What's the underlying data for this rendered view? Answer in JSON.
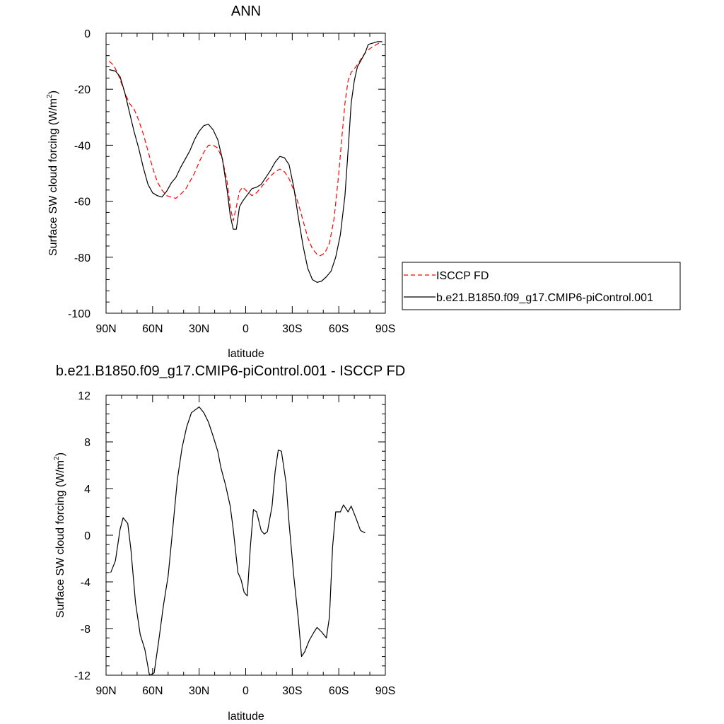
{
  "chart_data": [
    {
      "type": "line",
      "title": "ANN",
      "xlabel": "latitude",
      "ylabel": "Surface SW cloud forcing (W/m",
      "ylabel_sup": "2",
      "ylabel_end": ")",
      "xlim": [
        90,
        -90
      ],
      "ylim": [
        -100,
        0
      ],
      "x_ticks": [
        90,
        60,
        30,
        0,
        -30,
        -60,
        -90
      ],
      "x_tick_labels": [
        "90N",
        "60N",
        "30N",
        "0",
        "30S",
        "60S",
        "90S"
      ],
      "y_ticks": [
        0,
        -20,
        -40,
        -60,
        -80,
        -100
      ],
      "y_tick_labels": [
        "0",
        "-20",
        "-40",
        "-60",
        "-80",
        "-100"
      ],
      "legend_position": "right",
      "series": [
        {
          "name": "ISCCP FD",
          "color": "#ff0000",
          "dash": "dashed",
          "points": [
            [
              88,
              -10
            ],
            [
              85,
              -11.5
            ],
            [
              82,
              -15
            ],
            [
              78,
              -21
            ],
            [
              75,
              -25
            ],
            [
              72,
              -27
            ],
            [
              69,
              -31
            ],
            [
              66,
              -36
            ],
            [
              63,
              -42
            ],
            [
              60,
              -48
            ],
            [
              57,
              -53
            ],
            [
              54,
              -56
            ],
            [
              51,
              -58
            ],
            [
              48,
              -58.5
            ],
            [
              45,
              -59
            ],
            [
              42,
              -57.5
            ],
            [
              39,
              -56
            ],
            [
              36,
              -53
            ],
            [
              33,
              -50
            ],
            [
              30,
              -46
            ],
            [
              27,
              -42.5
            ],
            [
              24,
              -40
            ],
            [
              21,
              -40
            ],
            [
              18,
              -41
            ],
            [
              15,
              -45
            ],
            [
              12,
              -53
            ],
            [
              10,
              -62
            ],
            [
              8,
              -67
            ],
            [
              6,
              -62
            ],
            [
              4,
              -56.5
            ],
            [
              2,
              -55
            ],
            [
              0,
              -56
            ],
            [
              -2,
              -57
            ],
            [
              -4,
              -58
            ],
            [
              -7,
              -57
            ],
            [
              -10,
              -55
            ],
            [
              -13,
              -53
            ],
            [
              -16,
              -51
            ],
            [
              -19,
              -49.5
            ],
            [
              -22,
              -48.5
            ],
            [
              -25,
              -49.5
            ],
            [
              -28,
              -52
            ],
            [
              -31,
              -56
            ],
            [
              -34,
              -61
            ],
            [
              -37,
              -67
            ],
            [
              -40,
              -73
            ],
            [
              -43,
              -77
            ],
            [
              -46,
              -79
            ],
            [
              -48,
              -79.5
            ],
            [
              -51,
              -78.5
            ],
            [
              -54,
              -75
            ],
            [
              -57,
              -66
            ],
            [
              -60,
              -50
            ],
            [
              -62,
              -37
            ],
            [
              -64,
              -25
            ],
            [
              -66,
              -17
            ],
            [
              -68,
              -14
            ],
            [
              -71,
              -12
            ],
            [
              -74,
              -9.5
            ],
            [
              -77,
              -7
            ],
            [
              -80,
              -5.5
            ],
            [
              -83,
              -4.5
            ],
            [
              -86,
              -3.5
            ],
            [
              -88,
              -3
            ]
          ]
        },
        {
          "name": "b.e21.B1850.f09_g17.CMIP6-piControl.001",
          "color": "#000000",
          "dash": "solid",
          "points": [
            [
              88,
              -13
            ],
            [
              84,
              -13.5
            ],
            [
              81,
              -15.5
            ],
            [
              78,
              -21
            ],
            [
              75,
              -28
            ],
            [
              72,
              -35
            ],
            [
              69,
              -41
            ],
            [
              66,
              -48
            ],
            [
              63,
              -54
            ],
            [
              60,
              -57
            ],
            [
              57,
              -58
            ],
            [
              54,
              -58.5
            ],
            [
              51,
              -56.5
            ],
            [
              48,
              -53.5
            ],
            [
              45,
              -51.5
            ],
            [
              42,
              -48
            ],
            [
              39,
              -45
            ],
            [
              36,
              -42
            ],
            [
              33,
              -38
            ],
            [
              30,
              -35
            ],
            [
              27,
              -33
            ],
            [
              24,
              -32.5
            ],
            [
              21,
              -34.5
            ],
            [
              18,
              -38
            ],
            [
              15,
              -45
            ],
            [
              12,
              -56
            ],
            [
              10,
              -65
            ],
            [
              8,
              -70
            ],
            [
              6,
              -70
            ],
            [
              4,
              -62
            ],
            [
              2,
              -60
            ],
            [
              0,
              -58.5
            ],
            [
              -2,
              -57
            ],
            [
              -4,
              -55.5
            ],
            [
              -7,
              -55
            ],
            [
              -10,
              -54
            ],
            [
              -13,
              -51.5
            ],
            [
              -16,
              -49
            ],
            [
              -19,
              -46
            ],
            [
              -22,
              -44
            ],
            [
              -25,
              -44.5
            ],
            [
              -28,
              -47
            ],
            [
              -31,
              -55
            ],
            [
              -34,
              -66
            ],
            [
              -37,
              -76
            ],
            [
              -40,
              -84
            ],
            [
              -43,
              -88
            ],
            [
              -46,
              -89
            ],
            [
              -49,
              -88.5
            ],
            [
              -52,
              -87
            ],
            [
              -55,
              -85
            ],
            [
              -58,
              -80
            ],
            [
              -61,
              -72
            ],
            [
              -64,
              -58
            ],
            [
              -66,
              -42
            ],
            [
              -68,
              -25
            ],
            [
              -70,
              -17
            ],
            [
              -72,
              -12
            ],
            [
              -74,
              -10
            ],
            [
              -77,
              -7
            ],
            [
              -79,
              -4
            ],
            [
              -82,
              -3.5
            ],
            [
              -85,
              -3
            ],
            [
              -88,
              -3
            ]
          ]
        }
      ]
    },
    {
      "type": "line",
      "title": "b.e21.B1850.f09_g17.CMIP6-piControl.001 - ISCCP FD",
      "xlabel": "latitude",
      "ylabel": "Surface SW cloud forcing (W/m",
      "ylabel_sup": "2",
      "ylabel_end": ")",
      "xlim": [
        90,
        -90
      ],
      "ylim": [
        -12,
        12
      ],
      "x_ticks": [
        90,
        60,
        30,
        0,
        -30,
        -60,
        -90
      ],
      "x_tick_labels": [
        "90N",
        "60N",
        "30N",
        "0",
        "30S",
        "60S",
        "90S"
      ],
      "y_ticks": [
        12,
        8,
        4,
        0,
        -4,
        -8,
        -12
      ],
      "y_tick_labels": [
        "12",
        "8",
        "4",
        "0",
        "-4",
        "-8",
        "-12"
      ],
      "series": [
        {
          "color": "#000000",
          "dash": "solid",
          "points": [
            [
              87,
              -3.2
            ],
            [
              84,
              -2.2
            ],
            [
              81,
              0.5
            ],
            [
              79,
              1.5
            ],
            [
              76,
              1.0
            ],
            [
              74,
              -1.2
            ],
            [
              71,
              -5.8
            ],
            [
              68,
              -8.5
            ],
            [
              65,
              -9.8
            ],
            [
              62,
              -12
            ],
            [
              59,
              -11.8
            ],
            [
              56,
              -9.0
            ],
            [
              53,
              -6.0
            ],
            [
              50,
              -3.5
            ],
            [
              47,
              0.6
            ],
            [
              44,
              4.8
            ],
            [
              41,
              7.5
            ],
            [
              38,
              9.3
            ],
            [
              35,
              10.5
            ],
            [
              32,
              10.8
            ],
            [
              30,
              11.0
            ],
            [
              27,
              10.5
            ],
            [
              24,
              9.7
            ],
            [
              21,
              8.5
            ],
            [
              18,
              7.2
            ],
            [
              16,
              5.8
            ],
            [
              13,
              4.3
            ],
            [
              10,
              2.5
            ],
            [
              8,
              0.5
            ],
            [
              5,
              -3.2
            ],
            [
              3,
              -3.8
            ],
            [
              1,
              -4.9
            ],
            [
              -1,
              -5.2
            ],
            [
              -3,
              -1.0
            ],
            [
              -5,
              2.2
            ],
            [
              -7,
              2.0
            ],
            [
              -10,
              0.4
            ],
            [
              -12,
              0.1
            ],
            [
              -14,
              0.3
            ],
            [
              -17,
              2.5
            ],
            [
              -19,
              5.5
            ],
            [
              -21,
              7.3
            ],
            [
              -23,
              7.2
            ],
            [
              -26,
              4.5
            ],
            [
              -28,
              1.0
            ],
            [
              -31,
              -3.5
            ],
            [
              -34,
              -7.3
            ],
            [
              -36,
              -10.4
            ],
            [
              -38,
              -10.0
            ],
            [
              -41,
              -9.0
            ],
            [
              -44,
              -8.3
            ],
            [
              -46,
              -7.9
            ],
            [
              -49,
              -8.3
            ],
            [
              -52,
              -8.8
            ],
            [
              -54,
              -7.0
            ],
            [
              -56,
              -1.0
            ],
            [
              -58,
              2.0
            ],
            [
              -61,
              2.0
            ],
            [
              -63,
              2.6
            ],
            [
              -66,
              2.0
            ],
            [
              -68,
              2.5
            ],
            [
              -71,
              1.5
            ],
            [
              -74,
              0.4
            ],
            [
              -77,
              0.2
            ]
          ]
        }
      ]
    }
  ]
}
